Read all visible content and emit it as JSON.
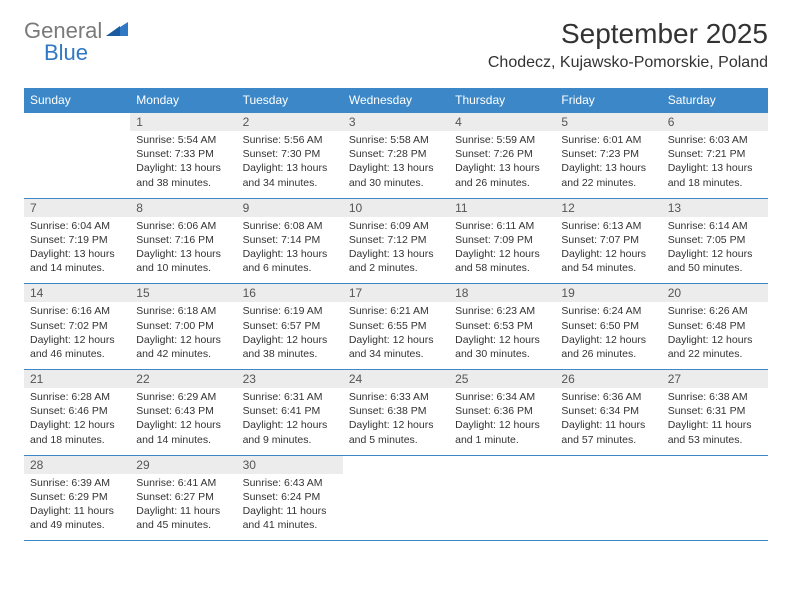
{
  "logo": {
    "text_gray": "General",
    "text_blue": "Blue"
  },
  "header": {
    "month_title": "September 2025",
    "location": "Chodecz, Kujawsko-Pomorskie, Poland"
  },
  "colors": {
    "header_bg": "#3c87c7",
    "header_text": "#ffffff",
    "daynum_bg": "#ececec",
    "border": "#3c87c7",
    "logo_gray": "#7a7a7a",
    "logo_blue": "#2f78c3"
  },
  "weekdays": [
    "Sunday",
    "Monday",
    "Tuesday",
    "Wednesday",
    "Thursday",
    "Friday",
    "Saturday"
  ],
  "weeks": [
    {
      "days": [
        null,
        {
          "n": "1",
          "sr": "5:54 AM",
          "ss": "7:33 PM",
          "dl": "13 hours and 38 minutes."
        },
        {
          "n": "2",
          "sr": "5:56 AM",
          "ss": "7:30 PM",
          "dl": "13 hours and 34 minutes."
        },
        {
          "n": "3",
          "sr": "5:58 AM",
          "ss": "7:28 PM",
          "dl": "13 hours and 30 minutes."
        },
        {
          "n": "4",
          "sr": "5:59 AM",
          "ss": "7:26 PM",
          "dl": "13 hours and 26 minutes."
        },
        {
          "n": "5",
          "sr": "6:01 AM",
          "ss": "7:23 PM",
          "dl": "13 hours and 22 minutes."
        },
        {
          "n": "6",
          "sr": "6:03 AM",
          "ss": "7:21 PM",
          "dl": "13 hours and 18 minutes."
        }
      ]
    },
    {
      "days": [
        {
          "n": "7",
          "sr": "6:04 AM",
          "ss": "7:19 PM",
          "dl": "13 hours and 14 minutes."
        },
        {
          "n": "8",
          "sr": "6:06 AM",
          "ss": "7:16 PM",
          "dl": "13 hours and 10 minutes."
        },
        {
          "n": "9",
          "sr": "6:08 AM",
          "ss": "7:14 PM",
          "dl": "13 hours and 6 minutes."
        },
        {
          "n": "10",
          "sr": "6:09 AM",
          "ss": "7:12 PM",
          "dl": "13 hours and 2 minutes."
        },
        {
          "n": "11",
          "sr": "6:11 AM",
          "ss": "7:09 PM",
          "dl": "12 hours and 58 minutes."
        },
        {
          "n": "12",
          "sr": "6:13 AM",
          "ss": "7:07 PM",
          "dl": "12 hours and 54 minutes."
        },
        {
          "n": "13",
          "sr": "6:14 AM",
          "ss": "7:05 PM",
          "dl": "12 hours and 50 minutes."
        }
      ]
    },
    {
      "days": [
        {
          "n": "14",
          "sr": "6:16 AM",
          "ss": "7:02 PM",
          "dl": "12 hours and 46 minutes."
        },
        {
          "n": "15",
          "sr": "6:18 AM",
          "ss": "7:00 PM",
          "dl": "12 hours and 42 minutes."
        },
        {
          "n": "16",
          "sr": "6:19 AM",
          "ss": "6:57 PM",
          "dl": "12 hours and 38 minutes."
        },
        {
          "n": "17",
          "sr": "6:21 AM",
          "ss": "6:55 PM",
          "dl": "12 hours and 34 minutes."
        },
        {
          "n": "18",
          "sr": "6:23 AM",
          "ss": "6:53 PM",
          "dl": "12 hours and 30 minutes."
        },
        {
          "n": "19",
          "sr": "6:24 AM",
          "ss": "6:50 PM",
          "dl": "12 hours and 26 minutes."
        },
        {
          "n": "20",
          "sr": "6:26 AM",
          "ss": "6:48 PM",
          "dl": "12 hours and 22 minutes."
        }
      ]
    },
    {
      "days": [
        {
          "n": "21",
          "sr": "6:28 AM",
          "ss": "6:46 PM",
          "dl": "12 hours and 18 minutes."
        },
        {
          "n": "22",
          "sr": "6:29 AM",
          "ss": "6:43 PM",
          "dl": "12 hours and 14 minutes."
        },
        {
          "n": "23",
          "sr": "6:31 AM",
          "ss": "6:41 PM",
          "dl": "12 hours and 9 minutes."
        },
        {
          "n": "24",
          "sr": "6:33 AM",
          "ss": "6:38 PM",
          "dl": "12 hours and 5 minutes."
        },
        {
          "n": "25",
          "sr": "6:34 AM",
          "ss": "6:36 PM",
          "dl": "12 hours and 1 minute."
        },
        {
          "n": "26",
          "sr": "6:36 AM",
          "ss": "6:34 PM",
          "dl": "11 hours and 57 minutes."
        },
        {
          "n": "27",
          "sr": "6:38 AM",
          "ss": "6:31 PM",
          "dl": "11 hours and 53 minutes."
        }
      ]
    },
    {
      "days": [
        {
          "n": "28",
          "sr": "6:39 AM",
          "ss": "6:29 PM",
          "dl": "11 hours and 49 minutes."
        },
        {
          "n": "29",
          "sr": "6:41 AM",
          "ss": "6:27 PM",
          "dl": "11 hours and 45 minutes."
        },
        {
          "n": "30",
          "sr": "6:43 AM",
          "ss": "6:24 PM",
          "dl": "11 hours and 41 minutes."
        },
        null,
        null,
        null,
        null
      ]
    }
  ],
  "labels": {
    "sunrise": "Sunrise:",
    "sunset": "Sunset:",
    "daylight": "Daylight:"
  }
}
